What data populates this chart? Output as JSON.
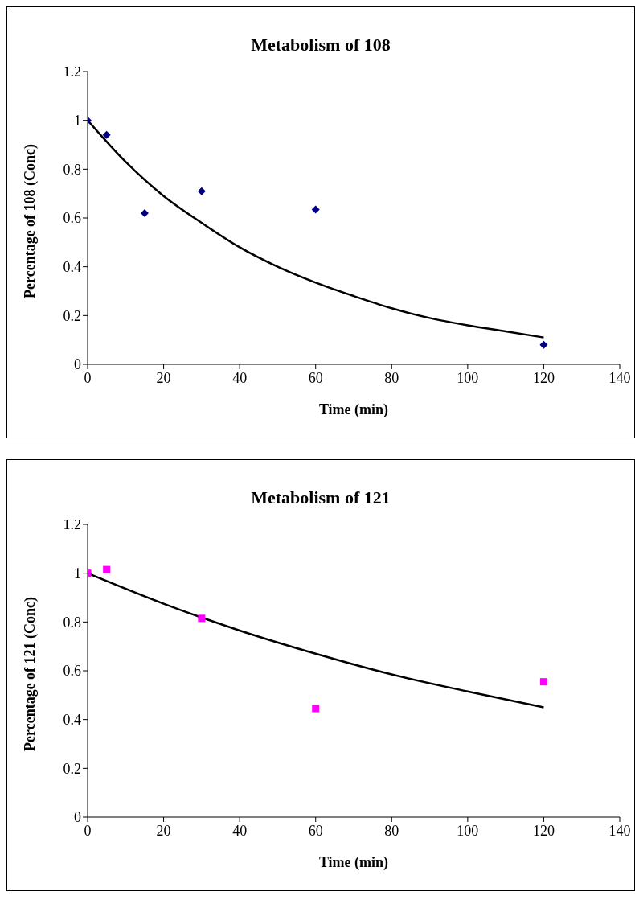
{
  "chart_data": [
    {
      "type": "scatter",
      "title": "Metabolism of 108",
      "xlabel": "Time (min)",
      "ylabel": "Percentage of 108 (Conc)",
      "xlim": [
        0,
        140
      ],
      "xticks": [
        0,
        20,
        40,
        60,
        80,
        100,
        120,
        140
      ],
      "ylim": [
        0,
        1.2
      ],
      "yticks": [
        0,
        0.2,
        0.4,
        0.6,
        0.8,
        1,
        1.2
      ],
      "grid": false,
      "series": [
        {
          "color": "#000080",
          "marker": "diamond",
          "x": [
            0,
            5,
            15,
            30,
            60,
            120
          ],
          "values": [
            1,
            0.94,
            0.62,
            0.71,
            0.635,
            0.08
          ]
        },
        {
          "type": "line",
          "color": "#000000",
          "marker": "none",
          "line_style": "solid",
          "x": [
            0,
            10,
            20,
            30,
            40,
            50,
            60,
            70,
            80,
            90,
            100,
            110,
            120
          ],
          "values": [
            1,
            0.83,
            0.69,
            0.58,
            0.48,
            0.4,
            0.335,
            0.28,
            0.23,
            0.19,
            0.16,
            0.135,
            0.11
          ]
        }
      ]
    },
    {
      "type": "scatter",
      "title": "Metabolism of 121",
      "xlabel": "Time (min)",
      "ylabel": "Percentage of 121 (Conc)",
      "xlim": [
        0,
        140
      ],
      "xticks": [
        0,
        20,
        40,
        60,
        80,
        100,
        120,
        140
      ],
      "ylim": [
        0,
        1.2
      ],
      "yticks": [
        0,
        0.2,
        0.4,
        0.6,
        0.8,
        1,
        1.2
      ],
      "grid": false,
      "series": [
        {
          "color": "#ff00ff",
          "marker": "square",
          "x": [
            0,
            5,
            30,
            60,
            120
          ],
          "values": [
            1,
            1.015,
            0.815,
            0.445,
            0.555
          ]
        },
        {
          "type": "line",
          "color": "#000000",
          "marker": "none",
          "line_style": "solid",
          "x": [
            0,
            20,
            40,
            60,
            80,
            100,
            120
          ],
          "values": [
            1,
            0.875,
            0.765,
            0.67,
            0.585,
            0.515,
            0.45
          ]
        }
      ]
    }
  ]
}
